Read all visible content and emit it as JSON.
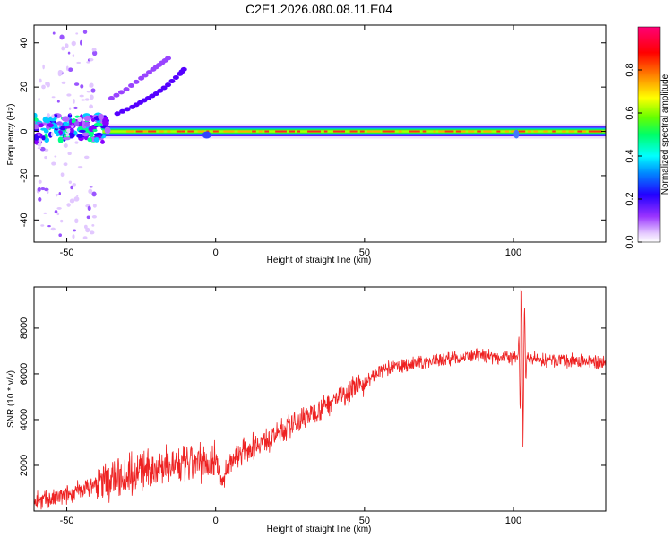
{
  "title": "C2E1.2026.080.08.11.E04",
  "chart_data": [
    {
      "type": "heatmap",
      "xlabel": "Height of straight line (km)",
      "ylabel": "Frequency (Hz)",
      "xlim": [
        -61,
        131
      ],
      "ylim": [
        -50,
        48
      ],
      "xticks": [
        -50,
        0,
        50,
        100
      ],
      "yticks": [
        -40,
        -20,
        0,
        20,
        40
      ],
      "colorbar": {
        "label": "Normalized spectral amplitude",
        "range": [
          0,
          1
        ],
        "ticks": [
          0.0,
          0.2,
          0.4,
          0.6,
          0.8
        ],
        "colors": [
          "#ffffff",
          "#e6ccff",
          "#9933ff",
          "#2200ff",
          "#0088ff",
          "#00ffff",
          "#00ff66",
          "#66ff00",
          "#ffff00",
          "#ff8800",
          "#ff0000",
          "#ff0077"
        ]
      },
      "band_center_hz": 0,
      "harmonic_tracks": [
        {
          "x": [
            -33,
            -28,
            -24,
            -20,
            -16,
            -12,
            -10
          ],
          "y": [
            8,
            11,
            14,
            17,
            21,
            26,
            29
          ]
        },
        {
          "x": [
            -35,
            -30,
            -25,
            -21,
            -18,
            -15
          ],
          "y": [
            15,
            19,
            24,
            28,
            31,
            34
          ]
        }
      ]
    },
    {
      "type": "line",
      "xlabel": "Height of straight line (km)",
      "ylabel": "SNR (10 * v/v)",
      "xlim": [
        -61,
        131
      ],
      "ylim": [
        0,
        9800
      ],
      "xticks": [
        -50,
        0,
        50,
        100
      ],
      "yticks": [
        2000,
        4000,
        6000,
        8000
      ],
      "color": "#ee2222",
      "trend": {
        "x": [
          -61,
          -55,
          -50,
          -40,
          -30,
          -20,
          -10,
          -3,
          0,
          2,
          5,
          10,
          20,
          30,
          40,
          50,
          55,
          60,
          70,
          80,
          90,
          100,
          110,
          120,
          131
        ],
        "y": [
          500,
          500,
          700,
          1200,
          1600,
          1900,
          2000,
          2100,
          2300,
          1200,
          2200,
          2700,
          3300,
          4100,
          4900,
          5600,
          6100,
          6300,
          6500,
          6700,
          6800,
          6700,
          6600,
          6550,
          6500
        ]
      },
      "spikes": [
        {
          "x": 102.5,
          "y": 9700
        },
        {
          "x": 103.2,
          "y": 2800
        }
      ]
    }
  ]
}
